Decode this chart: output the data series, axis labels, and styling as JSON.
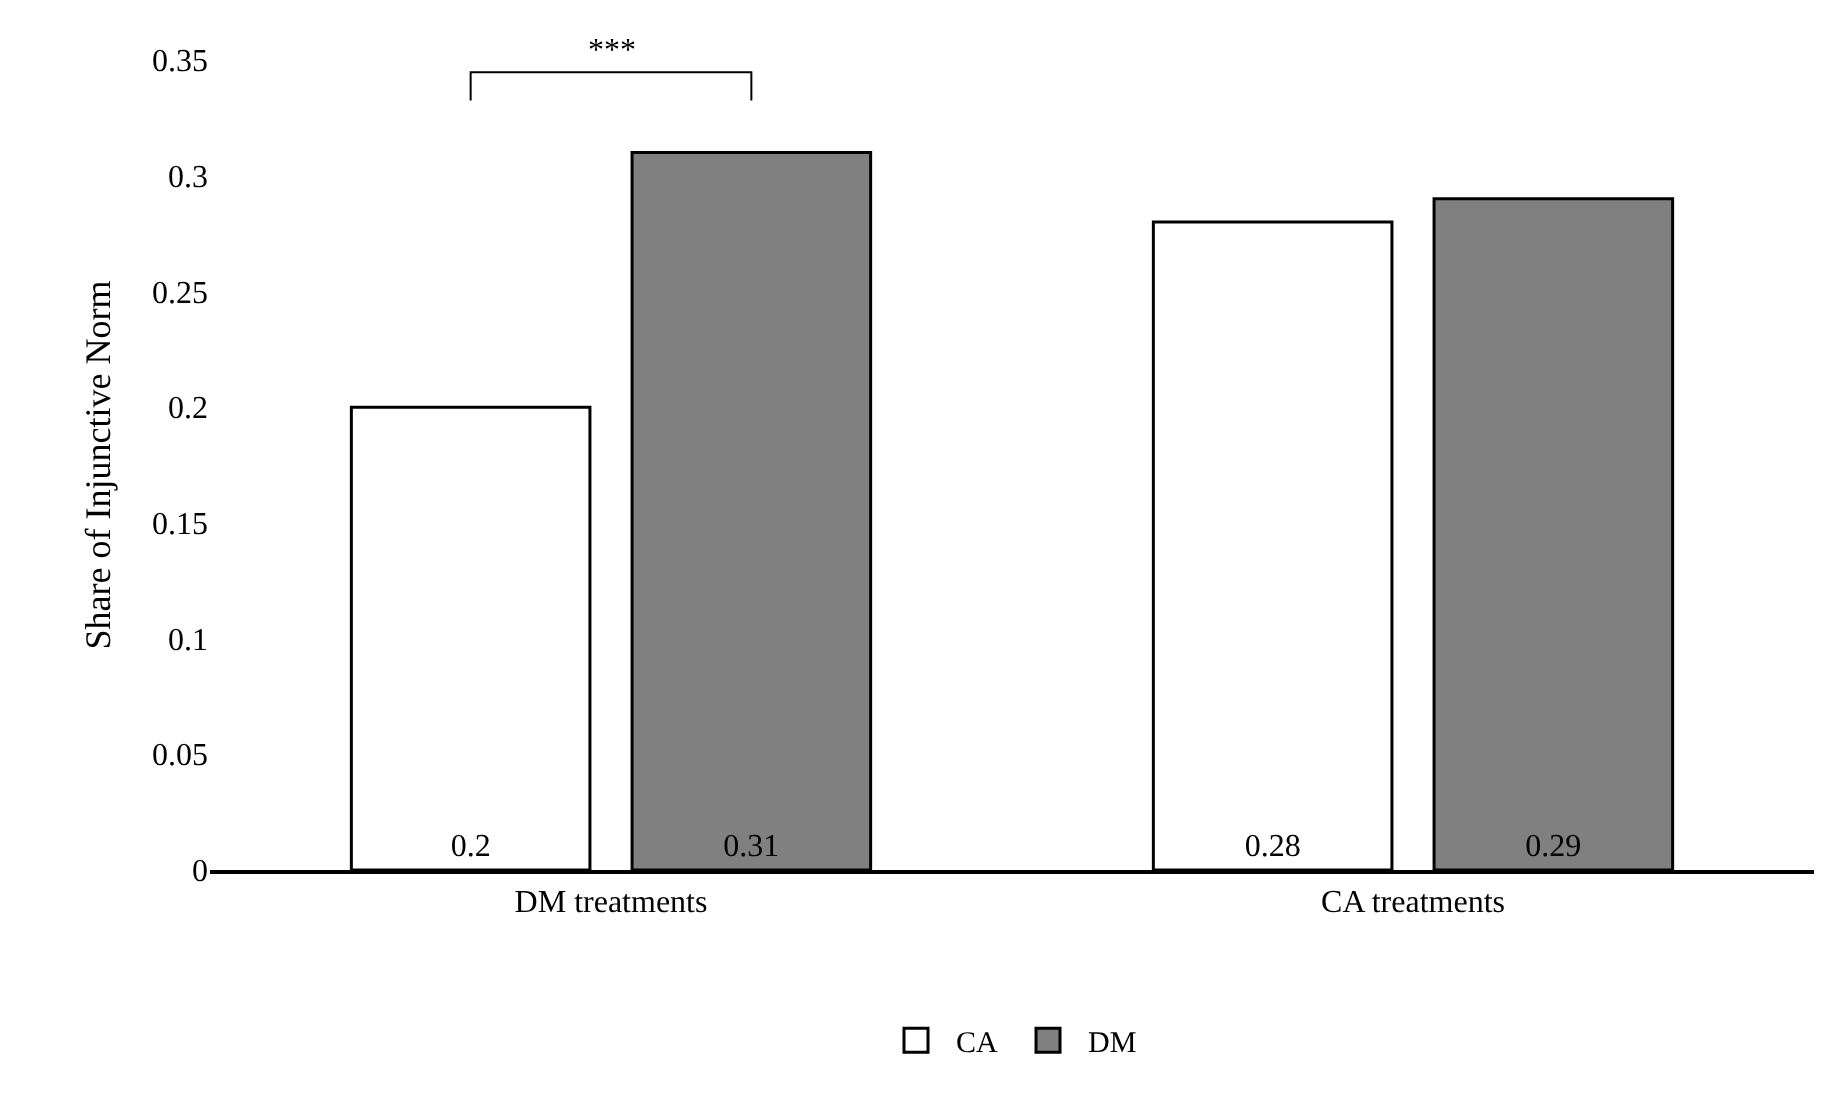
{
  "chart_data": {
    "type": "bar",
    "ylabel": "Share of Injunctive Norm",
    "categories": [
      "DM treatments",
      "CA treatments"
    ],
    "series": [
      {
        "name": "CA",
        "color": "#ffffff",
        "values": [
          0.2,
          0.28
        ]
      },
      {
        "name": "DM",
        "color": "#808080",
        "values": [
          0.31,
          0.29
        ]
      }
    ],
    "ylim": [
      0,
      0.35
    ],
    "yticks": [
      0,
      0.05,
      0.1,
      0.15,
      0.2,
      0.25,
      0.3,
      0.35
    ],
    "legend": "bottom",
    "data_labels": true,
    "annotations": [
      "***"
    ]
  }
}
